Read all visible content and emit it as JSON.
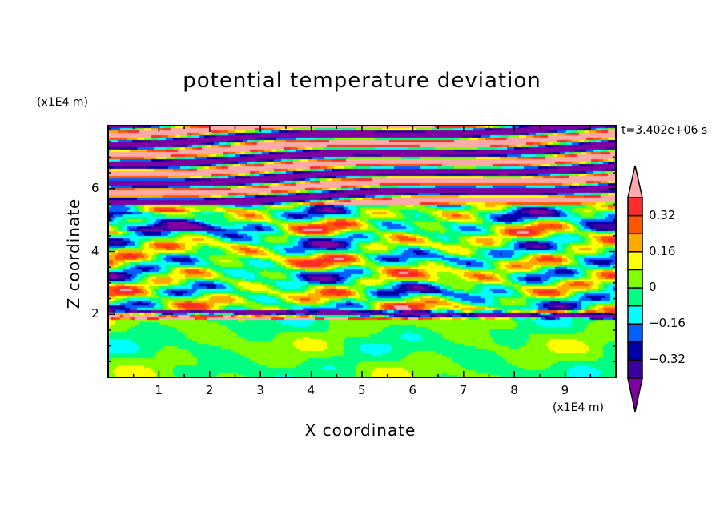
{
  "chart_data": {
    "type": "heatmap",
    "title": "potential temperature deviation",
    "xlabel": "X coordinate",
    "ylabel": "Z coordinate",
    "x_unit": "(x1E4 m)",
    "y_unit": "(x1E4 m)",
    "annotation": "t=3.402e+06 s",
    "xlim": [
      0,
      10
    ],
    "ylim": [
      0,
      8
    ],
    "x_ticks": [
      1,
      2,
      3,
      4,
      5,
      6,
      7,
      8,
      9
    ],
    "y_ticks": [
      2,
      4,
      6
    ],
    "colorbar": {
      "levels": [
        -0.4,
        -0.32,
        -0.24,
        -0.16,
        -0.08,
        0,
        0.08,
        0.16,
        0.24,
        0.32,
        0.4
      ],
      "tick_labels": [
        "0.32",
        "0.16",
        "0",
        "−0.16",
        "−0.32"
      ],
      "tick_values": [
        0.32,
        0.16,
        0,
        -0.16,
        -0.32
      ],
      "colors": [
        "#7f00a0",
        "#3c00a0",
        "#0000a8",
        "#0060ff",
        "#00ffff",
        "#00ff80",
        "#80ff00",
        "#ffff00",
        "#ffaa00",
        "#ff5500",
        "#ff2a2a",
        "#ffaaaa"
      ],
      "extend": "both"
    }
  }
}
